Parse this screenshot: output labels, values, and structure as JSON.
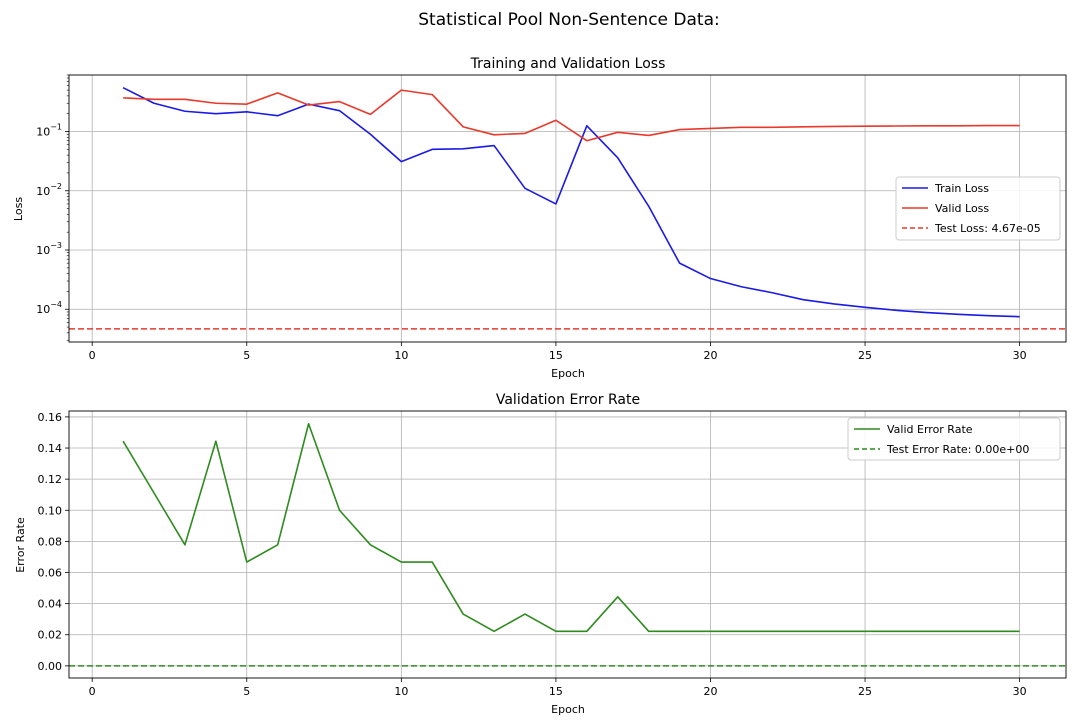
{
  "figure": {
    "suptitle": "Statistical Pool Non-Sentence Data:"
  },
  "chart_data": [
    {
      "type": "line",
      "title": "Training and Validation Loss",
      "xlabel": "Epoch",
      "ylabel": "Loss",
      "yscale": "log",
      "xlim": [
        -0.75,
        31.5
      ],
      "ylim": [
        2.8e-05,
        0.9
      ],
      "xticks": [
        0,
        5,
        10,
        15,
        20,
        25,
        30
      ],
      "yticks": [
        0.0001,
        0.001,
        0.01,
        0.1
      ],
      "ytick_labels": [
        [
          "10",
          "−4"
        ],
        [
          "10",
          "−3"
        ],
        [
          "10",
          "−2"
        ],
        [
          "10",
          "−1"
        ]
      ],
      "grid": true,
      "legend": "center-right",
      "x": [
        1,
        2,
        3,
        4,
        5,
        6,
        7,
        8,
        9,
        10,
        11,
        12,
        13,
        14,
        15,
        16,
        17,
        18,
        19,
        20,
        21,
        22,
        23,
        24,
        25,
        26,
        27,
        28,
        29,
        30
      ],
      "series": [
        {
          "name": "Train Loss",
          "color": "#1a1ae6",
          "style": "solid",
          "values": [
            0.55,
            0.3,
            0.22,
            0.2,
            0.215,
            0.185,
            0.29,
            0.225,
            0.09,
            0.031,
            0.05,
            0.051,
            0.058,
            0.011,
            0.006,
            0.125,
            0.036,
            0.0055,
            0.0006,
            0.00033,
            0.00024,
            0.00019,
            0.000145,
            0.000123,
            0.000108,
            9.6e-05,
            8.8e-05,
            8.2e-05,
            7.8e-05,
            7.5e-05
          ]
        },
        {
          "name": "Valid Loss",
          "color": "#e8392b",
          "style": "solid",
          "values": [
            0.37,
            0.35,
            0.35,
            0.3,
            0.29,
            0.45,
            0.28,
            0.32,
            0.195,
            0.5,
            0.42,
            0.12,
            0.088,
            0.093,
            0.155,
            0.07,
            0.097,
            0.086,
            0.108,
            0.113,
            0.118,
            0.118,
            0.12,
            0.122,
            0.123,
            0.124,
            0.125,
            0.125,
            0.126,
            0.126
          ]
        }
      ],
      "hlines": [
        {
          "name": "Test Loss: 4.67e-05",
          "value": 4.67e-05,
          "color": "#e8392b",
          "style": "dashed"
        }
      ]
    },
    {
      "type": "line",
      "title": "Validation Error Rate",
      "xlabel": "Epoch",
      "ylabel": "Error Rate",
      "yscale": "linear",
      "xlim": [
        -0.75,
        31.5
      ],
      "ylim": [
        -0.0078,
        0.1638
      ],
      "xticks": [
        0,
        5,
        10,
        15,
        20,
        25,
        30
      ],
      "yticks": [
        0.0,
        0.02,
        0.04,
        0.06,
        0.08,
        0.1,
        0.12,
        0.14,
        0.16
      ],
      "ytick_labels": [
        "0.00",
        "0.02",
        "0.04",
        "0.06",
        "0.08",
        "0.10",
        "0.12",
        "0.14",
        "0.16"
      ],
      "grid": true,
      "legend": "upper-right",
      "x": [
        1,
        2,
        3,
        4,
        5,
        6,
        7,
        8,
        9,
        10,
        11,
        12,
        13,
        14,
        15,
        16,
        17,
        18,
        19,
        20,
        21,
        22,
        23,
        24,
        25,
        26,
        27,
        28,
        29,
        30
      ],
      "series": [
        {
          "name": "Valid Error Rate",
          "color": "#2e8b1e",
          "style": "solid",
          "values": [
            0.1444,
            0.1111,
            0.0778,
            0.1444,
            0.0667,
            0.0778,
            0.1556,
            0.1,
            0.0778,
            0.0667,
            0.0667,
            0.0333,
            0.0222,
            0.0333,
            0.0222,
            0.0222,
            0.0444,
            0.0222,
            0.0222,
            0.0222,
            0.0222,
            0.0222,
            0.0222,
            0.0222,
            0.0222,
            0.0222,
            0.0222,
            0.0222,
            0.0222,
            0.0222
          ]
        }
      ],
      "hlines": [
        {
          "name": "Test Error Rate: 0.00e+00",
          "value": 0.0,
          "color": "#2e8b1e",
          "style": "dashed"
        }
      ]
    }
  ]
}
